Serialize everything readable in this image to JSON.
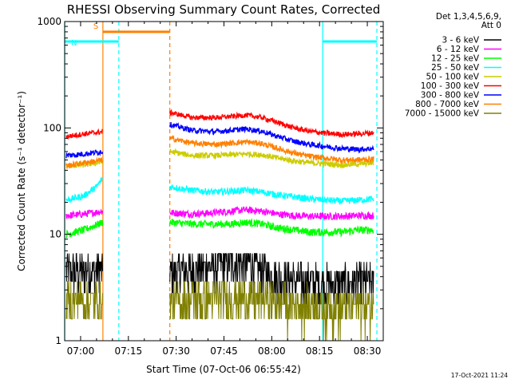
{
  "chart_data": {
    "type": "line",
    "title": "RHESSI Observing Summary Count Rates, Corrected",
    "xlabel": "Start Time (07-Oct-06 06:55:42)",
    "ylabel": "Corrected Count Rate (s⁻¹ detector⁻¹)",
    "y_scale": "log",
    "ylim": [
      1,
      1000
    ],
    "xlim_minutes_after_0655": [
      0,
      100
    ],
    "x_tick_labels": [
      "07:00",
      "07:15",
      "07:30",
      "07:45",
      "08:00",
      "08:15",
      "08:30"
    ],
    "x_tick_minutes": [
      5,
      20,
      35,
      50,
      65,
      80,
      95
    ],
    "y_tick_labels": [
      "1",
      "10",
      "100",
      "1000"
    ],
    "legend_header": [
      "Det 1,3,4,5,6,9,",
      "Att 0"
    ],
    "legend_position": "right",
    "data_gap_minutes": [
      12,
      33
    ],
    "series": [
      {
        "name": "3 - 6 keV",
        "color": "#000000",
        "x": [
          0.5,
          12,
          33,
          40,
          47,
          52,
          57,
          62,
          67,
          72,
          77,
          82,
          87,
          92,
          97
        ],
        "y": [
          4.5,
          4.6,
          4.5,
          4.7,
          5.2,
          5.5,
          5.3,
          4.6,
          4.0,
          3.7,
          3.6,
          3.5,
          3.5,
          3.5,
          3.6
        ]
      },
      {
        "name": "6 - 12 keV",
        "color": "#ff00ff",
        "x": [
          0.5,
          6,
          12,
          33,
          40,
          47,
          52,
          57,
          62,
          67,
          72,
          77,
          82,
          87,
          92,
          97
        ],
        "y": [
          15,
          15.5,
          16.5,
          16,
          15.5,
          16,
          16.5,
          17,
          16.5,
          15.5,
          15,
          14.8,
          14.8,
          14.8,
          15,
          15
        ]
      },
      {
        "name": "12 - 25 keV",
        "color": "#00ff00",
        "x": [
          0.5,
          6,
          12,
          33,
          40,
          47,
          52,
          57,
          62,
          67,
          72,
          77,
          82,
          87,
          92,
          97
        ],
        "y": [
          10,
          11,
          13,
          13,
          12.5,
          12.5,
          12.5,
          13,
          12.5,
          11.5,
          11,
          10.5,
          10.5,
          10.5,
          11,
          11
        ]
      },
      {
        "name": "25 - 50 keV",
        "color": "#00ffff",
        "x": [
          0.5,
          6,
          10,
          12,
          33,
          40,
          47,
          52,
          57,
          62,
          67,
          72,
          77,
          82,
          87,
          92,
          97
        ],
        "y": [
          21,
          23,
          28,
          34,
          28,
          26,
          25,
          25.5,
          26,
          25,
          23.5,
          22.5,
          21.5,
          21,
          20.5,
          21,
          21.5
        ]
      },
      {
        "name": "50 - 100 keV",
        "color": "#cccc00",
        "x": [
          0.5,
          6,
          12,
          33,
          40,
          47,
          52,
          57,
          62,
          67,
          72,
          77,
          82,
          87,
          92,
          97
        ],
        "y": [
          44,
          45,
          48,
          60,
          55,
          55,
          56,
          57,
          56,
          52,
          49,
          47,
          46,
          45,
          46,
          47
        ]
      },
      {
        "name": "100 - 300 keV",
        "color": "#ff0000",
        "x": [
          0.5,
          6,
          12,
          33,
          40,
          47,
          52,
          57,
          62,
          67,
          72,
          77,
          82,
          87,
          92,
          97
        ],
        "y": [
          83,
          88,
          92,
          140,
          125,
          125,
          128,
          132,
          125,
          112,
          100,
          93,
          89,
          87,
          88,
          90
        ]
      },
      {
        "name": "300 - 800 keV",
        "color": "#0000ff",
        "x": [
          0.5,
          6,
          12,
          33,
          40,
          47,
          52,
          57,
          62,
          67,
          72,
          77,
          82,
          87,
          92,
          97
        ],
        "y": [
          55,
          57,
          60,
          108,
          95,
          92,
          95,
          98,
          93,
          83,
          75,
          70,
          67,
          64,
          63,
          64
        ]
      },
      {
        "name": "800 - 7000 keV",
        "color": "#ff8000",
        "x": [
          0.5,
          6,
          12,
          33,
          40,
          47,
          52,
          57,
          62,
          67,
          72,
          77,
          82,
          87,
          92,
          97
        ],
        "y": [
          44,
          47,
          50,
          80,
          72,
          70,
          72,
          74,
          71,
          64,
          58,
          54,
          52,
          50,
          50,
          51
        ]
      },
      {
        "name": "7000 - 15000 keV",
        "color": "#808000",
        "x": [
          0.5,
          6,
          12,
          33,
          40,
          47,
          52,
          57,
          62,
          67,
          72,
          77,
          82,
          87,
          92,
          97
        ],
        "y": [
          2.4,
          2.4,
          2.4,
          2.3,
          2.4,
          2.5,
          2.6,
          2.6,
          2.5,
          2.3,
          2.2,
          2.2,
          2.1,
          2.1,
          2.2,
          2.2
        ]
      }
    ],
    "annotations": [
      {
        "label": "S",
        "color": "#ff8000",
        "x_start_minutes": 12,
        "x_end_minutes": 33,
        "level": 800
      },
      {
        "label": "N",
        "color": "#00ffff",
        "x_start_minutes": 0,
        "x_end_minutes": 17,
        "level": 650
      },
      {
        "label": "",
        "color": "#00ffff",
        "x_start_minutes": 81,
        "x_end_minutes": 98,
        "level": 650
      }
    ],
    "vertical_markers": [
      {
        "x_minutes": 12,
        "color": "#ff8000",
        "style": "solid"
      },
      {
        "x_minutes": 33,
        "color": "#ff8000",
        "style": "dashed"
      },
      {
        "x_minutes": 0,
        "color": "#00ffff",
        "style": "solid"
      },
      {
        "x_minutes": 17,
        "color": "#00ffff",
        "style": "dashed"
      },
      {
        "x_minutes": 81,
        "color": "#00ffff",
        "style": "solid"
      },
      {
        "x_minutes": 98,
        "color": "#00ffff",
        "style": "dashed"
      }
    ],
    "footer_stamp": "17-Oct-2021 11:24"
  }
}
